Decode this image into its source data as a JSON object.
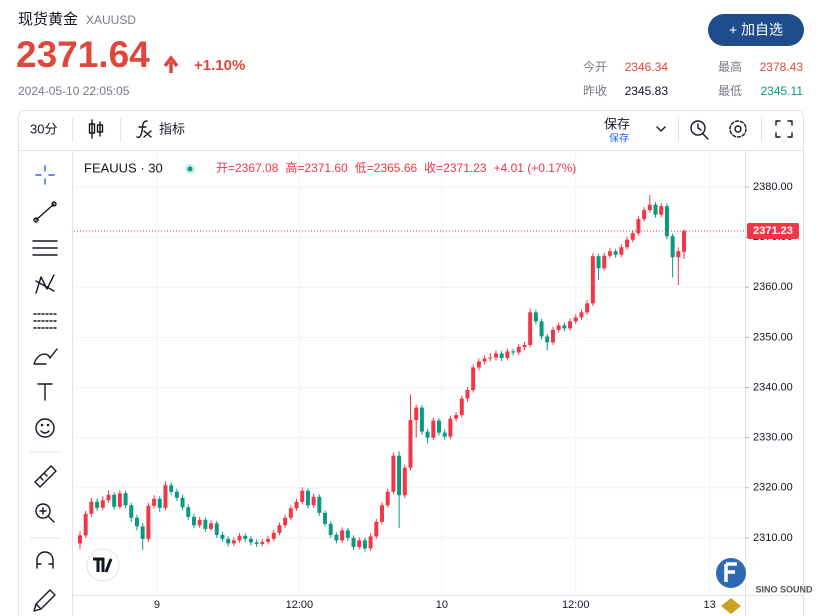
{
  "header": {
    "name": "现货黄金",
    "symbol": "XAUUSD",
    "price": "2371.64",
    "change": "+1.10%",
    "time": "2024-05-10 22:05:05",
    "button": "+ 加自选",
    "stats": [
      [
        "今开",
        "2346.34"
      ],
      [
        "最高",
        "2378.43"
      ],
      [
        "昨收",
        "2345.83"
      ],
      [
        "最低",
        "2345.11"
      ]
    ]
  },
  "toolbar": {
    "interval": "30分",
    "indicators": "指标",
    "save": "保存",
    "save_sub": "保存"
  },
  "watermark": "SINO SOUND",
  "chart_data": {
    "type": "candlestick",
    "symbol": "FEAUUS · 30",
    "legend": [
      "开=2367.08",
      "高=2371.60",
      "低=2365.66",
      "收=2371.23",
      "+4.01 (+0.17%)"
    ],
    "up_color": "#f23645",
    "down_color": "#089981",
    "grid": true,
    "last_price": 2371.23,
    "ylim": [
      2298.6,
      2387
    ],
    "yticks": [
      {
        "value": 2310,
        "label": "2310.00"
      },
      {
        "value": 2320,
        "label": "2320.00"
      },
      {
        "value": 2330,
        "label": "2330.00"
      },
      {
        "value": 2340,
        "label": "2340.00"
      },
      {
        "value": 2350,
        "label": "2350.00"
      },
      {
        "value": 2360,
        "label": "2360.00"
      },
      {
        "value": 2370,
        "label": "2370.00"
      },
      {
        "value": 2380,
        "label": "2380.00"
      }
    ],
    "xlim": [
      -1.05,
      116.7
    ],
    "xticks": [
      {
        "value": 13.5,
        "label": "9"
      },
      {
        "value": 38.5,
        "label": "12:00"
      },
      {
        "value": 63.5,
        "label": "10"
      },
      {
        "value": 87,
        "label": "12:00"
      },
      {
        "value": 110.5,
        "label": "13"
      }
    ],
    "candles": [
      [
        2308.9,
        2311.3,
        2307.8,
        2310.5
      ],
      [
        2310.5,
        2315.4,
        2310.0,
        2314.8
      ],
      [
        2314.8,
        2318.0,
        2314.2,
        2317.2
      ],
      [
        2317.2,
        2317.9,
        2315.4,
        2316.0
      ],
      [
        2316.0,
        2318.3,
        2315.5,
        2317.5
      ],
      [
        2317.5,
        2319.5,
        2317.0,
        2318.6
      ],
      [
        2318.6,
        2319.1,
        2315.6,
        2316.2
      ],
      [
        2316.2,
        2319.6,
        2315.8,
        2318.9
      ],
      [
        2318.9,
        2319.4,
        2315.9,
        2316.5
      ],
      [
        2316.5,
        2317.0,
        2313.2,
        2314.0
      ],
      [
        2314.0,
        2314.6,
        2311.5,
        2312.3
      ],
      [
        2312.3,
        2313.0,
        2307.6,
        2309.8
      ],
      [
        2309.8,
        2317.0,
        2309.2,
        2316.4
      ],
      [
        2316.4,
        2318.5,
        2315.8,
        2317.8
      ],
      [
        2317.8,
        2318.3,
        2315.2,
        2316.0
      ],
      [
        2316.0,
        2321.3,
        2315.5,
        2320.5
      ],
      [
        2320.5,
        2321.0,
        2318.6,
        2319.2
      ],
      [
        2319.2,
        2319.8,
        2317.4,
        2318.0
      ],
      [
        2318.0,
        2318.6,
        2315.5,
        2316.1
      ],
      [
        2316.1,
        2316.7,
        2313.6,
        2314.2
      ],
      [
        2314.2,
        2314.8,
        2311.9,
        2312.5
      ],
      [
        2312.5,
        2314.2,
        2312.0,
        2313.6
      ],
      [
        2313.6,
        2314.1,
        2311.2,
        2311.8
      ],
      [
        2311.8,
        2313.5,
        2311.3,
        2312.9
      ],
      [
        2312.9,
        2313.4,
        2310.0,
        2310.6
      ],
      [
        2310.6,
        2311.2,
        2309.2,
        2309.8
      ],
      [
        2309.8,
        2310.3,
        2308.3,
        2308.9
      ],
      [
        2308.9,
        2310.1,
        2308.4,
        2309.5
      ],
      [
        2309.5,
        2311.0,
        2309.0,
        2310.4
      ],
      [
        2310.4,
        2310.9,
        2309.2,
        2309.8
      ],
      [
        2309.8,
        2310.3,
        2308.5,
        2309.1
      ],
      [
        2309.1,
        2309.7,
        2308.2,
        2308.8
      ],
      [
        2308.8,
        2309.8,
        2308.3,
        2309.2
      ],
      [
        2309.2,
        2310.4,
        2308.7,
        2309.8
      ],
      [
        2309.8,
        2311.6,
        2309.3,
        2311.0
      ],
      [
        2311.0,
        2313.1,
        2310.5,
        2312.5
      ],
      [
        2312.5,
        2314.6,
        2312.0,
        2314.0
      ],
      [
        2314.0,
        2316.5,
        2313.5,
        2315.9
      ],
      [
        2315.9,
        2317.8,
        2315.4,
        2317.2
      ],
      [
        2317.2,
        2320.1,
        2316.7,
        2319.4
      ],
      [
        2319.4,
        2319.9,
        2315.9,
        2316.5
      ],
      [
        2316.5,
        2318.8,
        2316.0,
        2318.2
      ],
      [
        2318.2,
        2318.7,
        2314.4,
        2315.0
      ],
      [
        2315.0,
        2315.5,
        2312.2,
        2312.8
      ],
      [
        2312.8,
        2313.3,
        2310.0,
        2310.6
      ],
      [
        2310.6,
        2311.1,
        2308.9,
        2309.5
      ],
      [
        2309.5,
        2312.1,
        2309.0,
        2311.5
      ],
      [
        2311.5,
        2312.0,
        2309.4,
        2310.0
      ],
      [
        2310.0,
        2310.5,
        2307.6,
        2308.2
      ],
      [
        2308.2,
        2310.1,
        2307.7,
        2309.5
      ],
      [
        2309.5,
        2310.0,
        2307.3,
        2307.9
      ],
      [
        2307.9,
        2310.9,
        2307.4,
        2310.3
      ],
      [
        2310.3,
        2313.8,
        2309.8,
        2313.2
      ],
      [
        2313.2,
        2317.1,
        2312.7,
        2316.5
      ],
      [
        2316.5,
        2319.8,
        2316.0,
        2319.2
      ],
      [
        2319.2,
        2327.0,
        2318.7,
        2326.4
      ],
      [
        2326.4,
        2327.3,
        2312.0,
        2318.5
      ],
      [
        2318.5,
        2324.6,
        2318.0,
        2324.0
      ],
      [
        2324.0,
        2338.6,
        2323.5,
        2333.5
      ],
      [
        2333.5,
        2336.6,
        2330.0,
        2336.0
      ],
      [
        2336.0,
        2336.5,
        2330.6,
        2331.2
      ],
      [
        2331.2,
        2331.8,
        2328.8,
        2330.0
      ],
      [
        2330.0,
        2334.0,
        2329.5,
        2333.4
      ],
      [
        2333.4,
        2333.9,
        2330.4,
        2331.0
      ],
      [
        2331.0,
        2331.6,
        2329.6,
        2330.2
      ],
      [
        2330.2,
        2334.4,
        2329.7,
        2333.8
      ],
      [
        2333.8,
        2335.1,
        2333.2,
        2334.5
      ],
      [
        2334.5,
        2338.4,
        2334.0,
        2337.8
      ],
      [
        2337.8,
        2340.1,
        2337.2,
        2339.5
      ],
      [
        2339.5,
        2344.6,
        2339.0,
        2344.0
      ],
      [
        2344.0,
        2345.8,
        2343.4,
        2345.2
      ],
      [
        2345.2,
        2346.4,
        2344.6,
        2345.8
      ],
      [
        2345.8,
        2346.9,
        2345.2,
        2346.0
      ],
      [
        2346.0,
        2347.4,
        2345.4,
        2346.8
      ],
      [
        2346.8,
        2347.3,
        2345.3,
        2345.9
      ],
      [
        2345.9,
        2347.8,
        2345.4,
        2347.2
      ],
      [
        2347.2,
        2347.7,
        2346.4,
        2347.0
      ],
      [
        2347.0,
        2348.7,
        2346.5,
        2348.1
      ],
      [
        2348.1,
        2349.1,
        2347.5,
        2348.5
      ],
      [
        2348.5,
        2355.8,
        2348.0,
        2355.0
      ],
      [
        2355.0,
        2355.5,
        2352.6,
        2353.2
      ],
      [
        2353.2,
        2353.7,
        2349.6,
        2350.2
      ],
      [
        2350.2,
        2350.7,
        2347.4,
        2349.0
      ],
      [
        2349.0,
        2352.1,
        2348.5,
        2351.5
      ],
      [
        2351.5,
        2353.0,
        2351.0,
        2352.4
      ],
      [
        2352.4,
        2352.9,
        2351.2,
        2351.8
      ],
      [
        2351.8,
        2353.8,
        2351.3,
        2353.2
      ],
      [
        2353.2,
        2354.6,
        2352.7,
        2354.0
      ],
      [
        2354.0,
        2355.6,
        2353.5,
        2355.0
      ],
      [
        2355.0,
        2357.4,
        2354.5,
        2356.8
      ],
      [
        2356.8,
        2366.8,
        2356.3,
        2366.2
      ],
      [
        2366.2,
        2366.7,
        2361.5,
        2363.8
      ],
      [
        2363.8,
        2366.9,
        2363.3,
        2366.3
      ],
      [
        2366.3,
        2367.8,
        2365.8,
        2367.2
      ],
      [
        2367.2,
        2367.7,
        2365.9,
        2366.5
      ],
      [
        2366.5,
        2368.6,
        2366.0,
        2368.0
      ],
      [
        2368.0,
        2370.1,
        2367.5,
        2369.5
      ],
      [
        2369.5,
        2371.4,
        2369.0,
        2370.8
      ],
      [
        2370.8,
        2374.2,
        2370.3,
        2373.6
      ],
      [
        2373.6,
        2376.0,
        2373.1,
        2375.4
      ],
      [
        2375.4,
        2378.43,
        2374.9,
        2376.5
      ],
      [
        2376.5,
        2377.0,
        2373.9,
        2374.5
      ],
      [
        2374.5,
        2376.8,
        2374.0,
        2376.2
      ],
      [
        2376.2,
        2376.7,
        2369.6,
        2370.2
      ],
      [
        2370.2,
        2370.7,
        2362.0,
        2366.0
      ],
      [
        2366.0,
        2368.0,
        2360.4,
        2367.22
      ],
      [
        2367.08,
        2371.6,
        2365.66,
        2371.23
      ]
    ]
  }
}
